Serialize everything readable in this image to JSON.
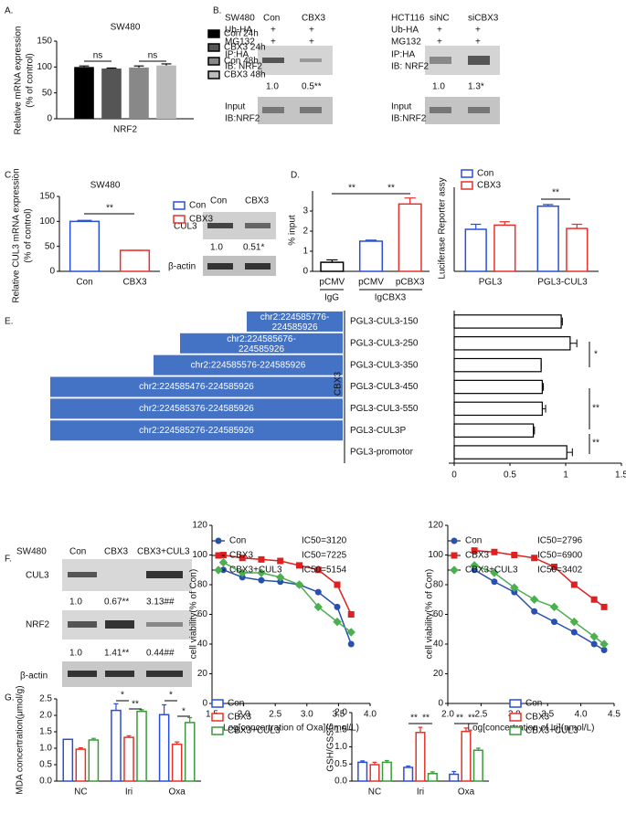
{
  "panel_labels": [
    "A.",
    "B.",
    "C.",
    "D.",
    "E.",
    "F.",
    "G."
  ],
  "blot_B1": {
    "cell": "SW480",
    "lanes": [
      "Con",
      "CBX3"
    ],
    "rows": [
      "Ub-HA",
      "MG132"
    ],
    "signs": [
      "+",
      "+",
      "+",
      "+"
    ],
    "ip": [
      "IP:HA",
      "IB: NRF2"
    ],
    "ratios": [
      "1.0",
      "0.5**"
    ],
    "input": [
      "Input",
      "IB:NRF2"
    ]
  },
  "blot_B2": {
    "cell": "HCT116",
    "lanes": [
      "siNC",
      "siCBX3"
    ],
    "rows": [
      "Ub-HA",
      "MG132"
    ],
    "signs": [
      "+",
      "+",
      "+",
      "+"
    ],
    "ip": [
      "IP:HA",
      "IB: NRF2"
    ],
    "ratios": [
      "1.0",
      "1.3*"
    ],
    "input": [
      "Input",
      "IB:NRF2"
    ]
  },
  "blot_C": {
    "lanes": [
      "Con",
      "CBX3"
    ],
    "proteins": [
      "CUL3",
      "β-actin"
    ],
    "ratios": [
      "1.0",
      "0.51*"
    ]
  },
  "blot_F": {
    "cell": "SW480",
    "lanes": [
      "Con",
      "CBX3",
      "CBX3+CUL3"
    ],
    "proteins": [
      "CUL3",
      "NRF2",
      "β-actin"
    ],
    "ratios_cul3": [
      "1.0",
      "0.67**",
      "3.13##"
    ],
    "ratios_nrf2": [
      "1.0",
      "1.41**",
      "0.44##"
    ]
  },
  "regions": [
    "chr2:224585776-224585926",
    "chr2:224585676-224585926",
    "chr2:224585576-224585926",
    "chr2:224585476-224585926",
    "chr2:224585376-224585926",
    "chr2:224585276-224585926"
  ],
  "chart_data": [
    {
      "type": "bar",
      "title": "SW480",
      "ylabel": [
        "Relative mRNA expression",
        "(% of control)"
      ],
      "categories": [
        "NRF2"
      ],
      "bar_style": "filled",
      "series": [
        {
          "name": "Con 24h",
          "color": "#000000",
          "values": [
            100
          ],
          "errors": [
            2
          ]
        },
        {
          "name": "CBX3 24h",
          "color": "#555555",
          "values": [
            97
          ],
          "errors": [
            1
          ]
        },
        {
          "name": "Con 48h",
          "color": "#888888",
          "values": [
            99
          ],
          "errors": [
            3
          ]
        },
        {
          "name": "CBX3 48h",
          "color": "#bbbbbb",
          "values": [
            103
          ],
          "errors": [
            3
          ]
        }
      ],
      "ylim": [
        0,
        150
      ],
      "yticks": [
        0,
        50,
        100,
        150
      ],
      "annotations": [
        "ns",
        "ns"
      ]
    },
    {
      "type": "bar",
      "title": "SW480",
      "ylabel": [
        "Relative CUL3 mRNA expression",
        "(% of control)"
      ],
      "categories": [
        "Con",
        "CBX3"
      ],
      "values": [
        100,
        42
      ],
      "errors": [
        2,
        0
      ],
      "colors": [
        "#2a4fd6",
        "#e8302a"
      ],
      "bar_style": "outline",
      "legend": true,
      "ylim": [
        0,
        150
      ],
      "yticks": [
        0,
        50,
        100,
        150
      ],
      "annotations": [
        "**"
      ]
    },
    {
      "type": "bar",
      "ylabel": [
        "% input"
      ],
      "categories": [
        "pCMV",
        "pCMV",
        "pCBX3"
      ],
      "group_labels": [
        "IgG",
        "IgCBX3"
      ],
      "values": [
        0.45,
        1.5,
        3.35
      ],
      "errors": [
        0.12,
        0.05,
        0.3
      ],
      "colors": [
        "#000000",
        "#2a4fd6",
        "#e8302a"
      ],
      "bar_style": "outline",
      "ylim": [
        0,
        4
      ],
      "yticks": [
        0,
        1,
        2,
        3
      ],
      "annotations": [
        "**",
        "**"
      ]
    },
    {
      "type": "bar",
      "ylabel": [
        "Luciferase Reporter assy"
      ],
      "categories": [
        "PGL3",
        "PGL3-CUL3"
      ],
      "bar_style": "outline",
      "series": [
        {
          "name": "Con",
          "color": "#2a4fd6",
          "values": [
            1.0,
            1.55
          ],
          "errors": [
            0.12,
            0.04
          ]
        },
        {
          "name": "CBX3",
          "color": "#e8302a",
          "values": [
            1.1,
            1.02
          ],
          "errors": [
            0.08,
            0.1
          ]
        }
      ],
      "ylim": [
        0,
        2
      ],
      "annotations": [
        "**"
      ]
    },
    {
      "type": "hbar",
      "ylabel": [
        "CBX3"
      ],
      "categories": [
        "PGL3-CUL3-150",
        "PGL3-CUL3-250",
        "PGL3-CUL3-350",
        "PGL3-CUL3-450",
        "PGL3-CUL3-550",
        "PGL3-CUL3P",
        "PGL3-promotor"
      ],
      "values": [
        0.96,
        1.04,
        0.78,
        0.79,
        0.79,
        0.71,
        1.01
      ],
      "errors": [
        0.01,
        0.06,
        0,
        0.01,
        0.03,
        0.01,
        0.05
      ],
      "color": "#000000",
      "bar_style": "outline",
      "xlim": [
        0,
        1.5
      ],
      "xticks": [
        0,
        0.5,
        1,
        1.5
      ],
      "annotations": [
        "*",
        "**",
        "**"
      ]
    },
    {
      "type": "line",
      "ylabel": [
        "cell viability(% of Con)"
      ],
      "xlabel": "Log[concertration of Oxa](nmol/L)",
      "x": [
        1.68,
        1.98,
        2.28,
        2.58,
        2.88,
        3.18,
        3.48,
        3.7
      ],
      "xlim": [
        1.5,
        4
      ],
      "xticks": [
        1.5,
        {
          "value": 2,
          "label": "2.0"
        },
        2.5,
        {
          "value": 3,
          "label": "3.0"
        },
        3.5,
        {
          "value": 4,
          "label": "4.0"
        }
      ],
      "ylim": [
        0,
        120
      ],
      "yticks": [
        0,
        20,
        40,
        60,
        80,
        100,
        120
      ],
      "series": [
        {
          "name": "Con",
          "ic50": "IC50=3120",
          "color": "#2850b0",
          "marker": "circle",
          "values": [
            90,
            85,
            83,
            82,
            80,
            75,
            65,
            40
          ]
        },
        {
          "name": "CBX3",
          "ic50": "IC50=7225",
          "color": "#e02020",
          "marker": "square",
          "values": [
            100,
            98,
            97,
            96,
            93,
            90,
            80,
            60
          ]
        },
        {
          "name": "CBX3+CUL3",
          "ic50": "IC50=5154",
          "color": "#4caf50",
          "marker": "diamond",
          "values": [
            95,
            88,
            88,
            85,
            80,
            65,
            55,
            48
          ]
        }
      ]
    },
    {
      "type": "line",
      "ylabel": [
        "cell viability(% of Con)"
      ],
      "xlabel": "Log[concertration of Iri](nmol/L)",
      "x": [
        2.4,
        2.7,
        3.0,
        3.3,
        3.6,
        3.9,
        4.2,
        4.35
      ],
      "xlim": [
        2,
        4.5
      ],
      "xticks": [
        {
          "value": 2,
          "label": "2.0"
        },
        2.5,
        {
          "value": 3,
          "label": "3.0"
        },
        3.5,
        {
          "value": 4,
          "label": "4.0"
        },
        4.5
      ],
      "ylim": [
        0,
        120
      ],
      "yticks": [
        0,
        20,
        40,
        60,
        80,
        100,
        120
      ],
      "series": [
        {
          "name": "Con",
          "ic50": "IC50=2796",
          "color": "#2850b0",
          "marker": "circle",
          "values": [
            90,
            82,
            75,
            62,
            55,
            48,
            40,
            36
          ]
        },
        {
          "name": "CBX3",
          "ic50": "IC50=6900",
          "color": "#e02020",
          "marker": "square",
          "values": [
            103,
            102,
            100,
            98,
            92,
            80,
            70,
            65
          ]
        },
        {
          "name": "CBX3+CUL3",
          "ic50": "IC50=3402",
          "color": "#4caf50",
          "marker": "diamond",
          "values": [
            93,
            88,
            78,
            70,
            65,
            55,
            45,
            40
          ]
        }
      ]
    },
    {
      "type": "bar",
      "ylabel": [
        "MDA concertration(μmol/g)"
      ],
      "categories": [
        "NC",
        "Iri",
        "Oxa"
      ],
      "bar_style": "outline",
      "series": [
        {
          "name": "Con",
          "color": "#2a4fd6",
          "values": [
            1.27,
            2.15,
            2.02
          ],
          "errors": [
            0,
            0.2,
            0.3
          ]
        },
        {
          "name": "CBX3",
          "color": "#e8302a",
          "values": [
            0.97,
            1.33,
            1.12
          ],
          "errors": [
            0.04,
            0.05,
            0.07
          ]
        },
        {
          "name": "CBX3+CUL3",
          "color": "#3a9a3a",
          "values": [
            1.25,
            2.12,
            1.78
          ],
          "errors": [
            0.05,
            0.05,
            0.15
          ]
        }
      ],
      "ylim": [
        0,
        2.5
      ],
      "yticks": [
        {
          "value": 0,
          "label": "0.0"
        },
        0.5,
        {
          "value": 1,
          "label": "1.0"
        },
        1.5,
        {
          "value": 2,
          "label": "2.0"
        },
        2.5
      ],
      "annotations": [
        "*",
        "**",
        "*",
        "*"
      ]
    },
    {
      "type": "bar",
      "ylabel": [
        "GSH/GSSG"
      ],
      "categories": [
        "NC",
        "Iri",
        "Oxa"
      ],
      "bar_style": "outline",
      "series": [
        {
          "name": "Con",
          "color": "#2a4fd6",
          "values": [
            0.55,
            0.4,
            0.2
          ],
          "errors": [
            0.04,
            0.04,
            0.08
          ]
        },
        {
          "name": "CBX3",
          "color": "#e8302a",
          "values": [
            0.48,
            1.42,
            1.45
          ],
          "errors": [
            0.07,
            0.15,
            0.1
          ]
        },
        {
          "name": "CBX3+CUL3",
          "color": "#3a9a3a",
          "values": [
            0.55,
            0.22,
            0.9
          ],
          "errors": [
            0.05,
            0.05,
            0.06
          ]
        }
      ],
      "ylim": [
        0,
        2
      ],
      "yticks": [
        {
          "value": 0,
          "label": "0.0"
        },
        0.5,
        {
          "value": 1,
          "label": "1.0"
        },
        1.5,
        {
          "value": 2,
          "label": "2.0"
        }
      ],
      "annotations": [
        "**",
        "**",
        "**",
        "**"
      ]
    }
  ]
}
